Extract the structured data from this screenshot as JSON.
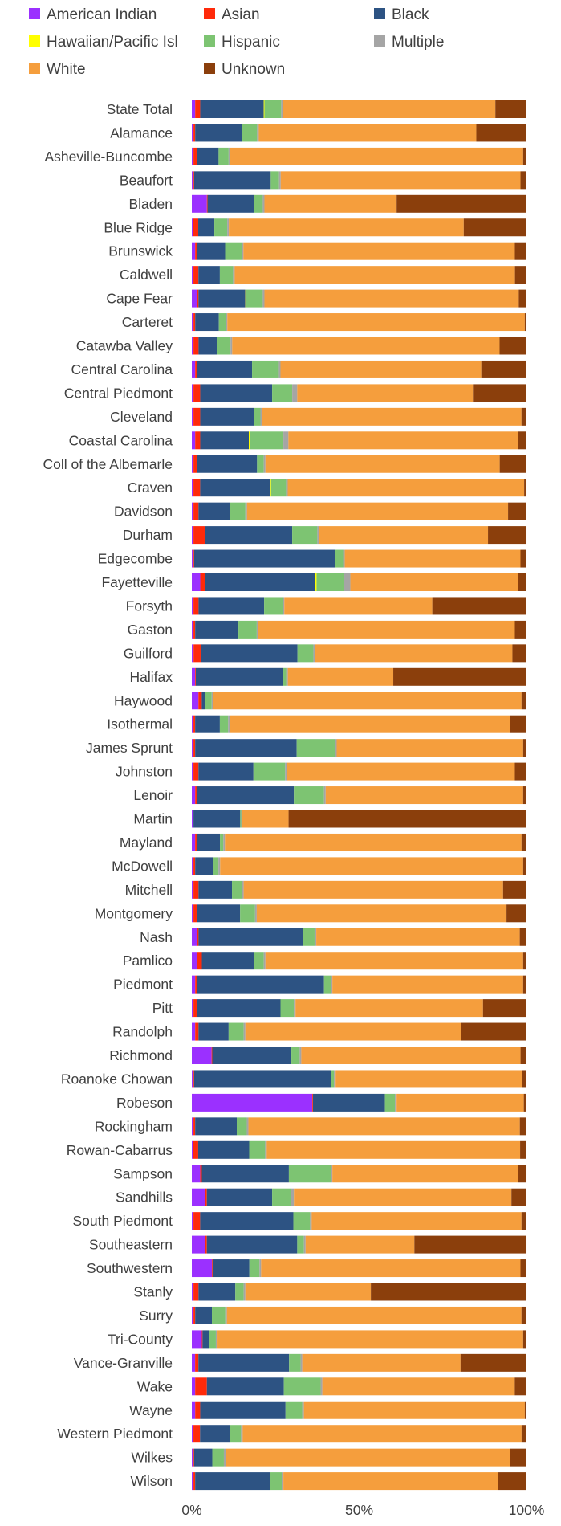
{
  "chart_data": {
    "type": "bar",
    "orientation": "horizontal",
    "stacked": "percent",
    "legend_position": "top",
    "grid": false,
    "xlim": [
      0,
      100
    ],
    "x_ticks": [
      "0%",
      "50%",
      "100%"
    ],
    "categories": [
      "State Total",
      "Alamance",
      "Asheville-Buncombe",
      "Beaufort",
      "Bladen",
      "Blue Ridge",
      "Brunswick",
      "Caldwell",
      "Cape Fear",
      "Carteret",
      "Catawba Valley",
      "Central Carolina",
      "Central Piedmont",
      "Cleveland",
      "Coastal Carolina",
      "Coll of the Albemarle",
      "Craven",
      "Davidson",
      "Durham",
      "Edgecombe",
      "Fayetteville",
      "Forsyth",
      "Gaston",
      "Guilford",
      "Halifax",
      "Haywood",
      "Isothermal",
      "James Sprunt",
      "Johnston",
      "Lenoir",
      "Martin",
      "Mayland",
      "McDowell",
      "Mitchell",
      "Montgomery",
      "Nash",
      "Pamlico",
      "Piedmont",
      "Pitt",
      "Randolph",
      "Richmond",
      "Roanoke Chowan",
      "Robeson",
      "Rockingham",
      "Rowan-Cabarrus",
      "Sampson",
      "Sandhills",
      "South Piedmont",
      "Southeastern",
      "Southwestern",
      "Stanly",
      "Surry",
      "Tri-County",
      "Vance-Granville",
      "Wake",
      "Wayne",
      "Western Piedmont",
      "Wilkes",
      "Wilson"
    ],
    "series": [
      {
        "name": "American Indian",
        "color": "#9B30FF",
        "values": [
          1,
          0.5,
          0.5,
          0.5,
          4.5,
          0.5,
          1,
          0.5,
          1.5,
          0.5,
          0.5,
          1,
          0.5,
          0.5,
          1,
          0.5,
          0.5,
          0.5,
          0.5,
          0.5,
          2.5,
          0.5,
          0.5,
          0.5,
          1,
          2,
          0.5,
          0.5,
          0.5,
          1,
          0.3,
          1,
          0.5,
          0.5,
          0.5,
          1.5,
          1.5,
          1,
          0.5,
          1,
          6,
          0.5,
          36,
          0.5,
          0.5,
          2.5,
          4,
          0.5,
          4,
          6,
          0.5,
          0.5,
          3,
          1,
          1,
          1,
          0.5,
          0.5,
          0.5
        ]
      },
      {
        "name": "Asian",
        "color": "#FF2A0A",
        "values": [
          1.5,
          0.5,
          1,
          0.2,
          0.2,
          1.5,
          0.5,
          1.5,
          0.5,
          0.5,
          1.5,
          0.5,
          2,
          2,
          1.5,
          1,
          2,
          1.5,
          3.5,
          0.2,
          1.5,
          1.5,
          0.5,
          2,
          0.2,
          1,
          0.5,
          0.5,
          1.5,
          0.5,
          0.2,
          0.5,
          0.5,
          1.5,
          1,
          0.5,
          1.5,
          0.5,
          1,
          1,
          0.2,
          0.2,
          0.2,
          0.5,
          1.5,
          0.5,
          0.5,
          2,
          0.5,
          0.2,
          1.5,
          0.5,
          0.2,
          1,
          3.5,
          1.5,
          2,
          0.2,
          0.5
        ]
      },
      {
        "name": "Black",
        "color": "#2D5383",
        "values": [
          19,
          14,
          6.5,
          23,
          14,
          5,
          8.5,
          6.5,
          14,
          7,
          5.5,
          16.5,
          21.5,
          16,
          14.5,
          18,
          21,
          9.5,
          26,
          42,
          32.5,
          19.5,
          13,
          27.5,
          26,
          1,
          7.5,
          30.5,
          16.5,
          29,
          14,
          7,
          5.5,
          10,
          13,
          31,
          15.5,
          38,
          25,
          9,
          24,
          41,
          21.5,
          12.5,
          16,
          26,
          19.5,
          28,
          27,
          11,
          11,
          5,
          2,
          27.5,
          23,
          25.5,
          9,
          5.5,
          22.5
        ]
      },
      {
        "name": "Hawaiian/Pacific Isl",
        "color": "#FFFF00",
        "values": [
          0.2,
          0,
          0,
          0,
          0,
          0,
          0,
          0,
          0.2,
          0,
          0,
          0,
          0,
          0,
          0.3,
          0,
          0.3,
          0,
          0,
          0,
          0.4,
          0,
          0,
          0,
          0,
          0,
          0,
          0,
          0,
          0,
          0,
          0,
          0,
          0,
          0,
          0,
          0,
          0,
          0,
          0,
          0,
          0,
          0,
          0,
          0,
          0,
          0,
          0,
          0,
          0,
          0,
          0,
          0,
          0,
          0,
          0,
          0,
          0,
          0
        ]
      },
      {
        "name": "Hispanic",
        "color": "#7DC472",
        "values": [
          5,
          4.5,
          3,
          2.5,
          2.5,
          4,
          5,
          4,
          5,
          2,
          4,
          8,
          6,
          2,
          10,
          2,
          4.5,
          4.5,
          7.5,
          2.5,
          8,
          5.5,
          5.5,
          4.5,
          1,
          2,
          2.5,
          11.5,
          9.5,
          9,
          0.3,
          1,
          1.5,
          3,
          4.5,
          3.5,
          3,
          2,
          4,
          4.5,
          2.5,
          1,
          3,
          3,
          5,
          12.5,
          5.5,
          5,
          2,
          3,
          2.5,
          4,
          2,
          3.5,
          11,
          5,
          3.5,
          3.5,
          3.5
        ]
      },
      {
        "name": "Multiple",
        "color": "#A5A5A5",
        "values": [
          0.5,
          0.5,
          0.5,
          0.5,
          0.5,
          0.5,
          0.5,
          0.5,
          0.5,
          0.5,
          0.5,
          0.5,
          1.5,
          0.5,
          1.5,
          0.5,
          0.5,
          0.5,
          0.5,
          0.5,
          2,
          0.5,
          0.5,
          0.5,
          0.5,
          0.5,
          0.5,
          0.5,
          0.5,
          0.5,
          0.2,
          0.5,
          0.5,
          0.5,
          0.5,
          0.5,
          0.5,
          0.5,
          0.5,
          0.5,
          0.5,
          0.5,
          0.5,
          0.5,
          0.5,
          0.5,
          1,
          0.5,
          0.5,
          0.5,
          0.5,
          0.5,
          0.5,
          0.5,
          0.5,
          0.5,
          0.5,
          0.5,
          0.5
        ]
      },
      {
        "name": "White",
        "color": "#F59E3D",
        "values": [
          63.5,
          65,
          87.5,
          72,
          39.5,
          73,
          81.5,
          85,
          76,
          88,
          79.5,
          60,
          52.5,
          77.5,
          68.5,
          70,
          71,
          78,
          50.5,
          52.5,
          49.5,
          44,
          77,
          56,
          31.5,
          93,
          85,
          56,
          68.5,
          59,
          14,
          89.5,
          91,
          77.5,
          75,
          60.5,
          77,
          57,
          56,
          64.5,
          66.5,
          56,
          38,
          81.5,
          79.5,
          55.5,
          65,
          63,
          32.5,
          77.5,
          37.5,
          88,
          91.5,
          48,
          57.5,
          66,
          85,
          86,
          64.5
        ]
      },
      {
        "name": "Unknown",
        "color": "#8B3F0C",
        "values": [
          9.3,
          15,
          1,
          1.8,
          38.8,
          19.5,
          3.5,
          3.5,
          2.3,
          0.5,
          8,
          13.5,
          16,
          1.5,
          2.5,
          8,
          0.7,
          5.5,
          11.5,
          1.8,
          2.6,
          28,
          3.5,
          4,
          39.8,
          1.5,
          5,
          1,
          3.5,
          1,
          71.3,
          1.5,
          1,
          7,
          6,
          2,
          1,
          1,
          13,
          19.5,
          1.8,
          1.3,
          0.8,
          2,
          2,
          2.5,
          4.5,
          1.5,
          33.5,
          1.8,
          46.5,
          1.5,
          1,
          20,
          3.5,
          0.5,
          1.5,
          5,
          8.5
        ]
      }
    ]
  }
}
